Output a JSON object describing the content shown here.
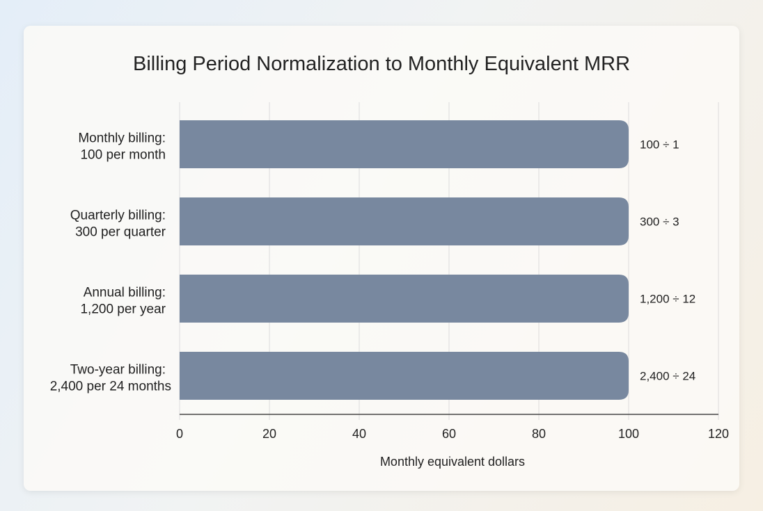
{
  "chart_data": {
    "type": "bar",
    "orientation": "horizontal",
    "title": "Billing Period Normalization to Monthly Equivalent MRR",
    "xlabel": "Monthly equivalent dollars",
    "ylabel": "",
    "categories": [
      [
        "Monthly billing:",
        "100 per month"
      ],
      [
        "Quarterly billing:",
        "300 per quarter"
      ],
      [
        "Annual billing:",
        "1,200 per year"
      ],
      [
        "Two-year billing:",
        "2,400 per 24 months"
      ]
    ],
    "values": [
      100,
      100,
      100,
      100
    ],
    "annotations": [
      "100 ÷ 1",
      "300 ÷ 3",
      "1,200 ÷ 12",
      "2,400 ÷ 24"
    ],
    "xlim": [
      0,
      120
    ],
    "xticks": [
      0,
      20,
      40,
      60,
      80,
      100,
      120
    ],
    "grid": true,
    "bar_color": "#78889f"
  }
}
